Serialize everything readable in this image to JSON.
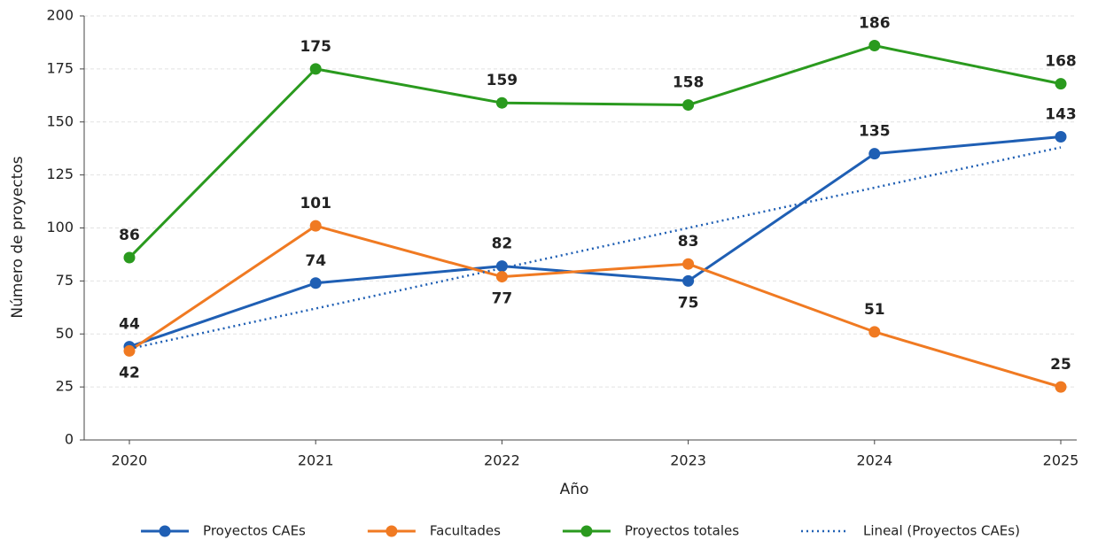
{
  "chart_data": {
    "type": "line",
    "x_label": "Año",
    "y_label": "Número de proyectos",
    "categories": [
      "2020",
      "2021",
      "2022",
      "2023",
      "2024",
      "2025"
    ],
    "series": [
      {
        "name": "Proyectos CAEs",
        "color": "#1f5fb4",
        "values": [
          44,
          74,
          82,
          75,
          135,
          143
        ],
        "markers": true,
        "data_labels": true
      },
      {
        "name": "Facultades",
        "color": "#f07a22",
        "values": [
          42,
          101,
          77,
          83,
          51,
          25
        ],
        "markers": true,
        "data_labels": true
      },
      {
        "name": "Proyectos totales",
        "color": "#2a9a1e",
        "values": [
          86,
          175,
          159,
          158,
          186,
          168
        ],
        "markers": true,
        "data_labels": true
      },
      {
        "name": "Lineal (Proyectos CAEs)",
        "color": "#1f5fb4",
        "values": [
          43,
          62,
          81,
          100,
          119,
          138
        ],
        "markers": false,
        "data_labels": false,
        "line_style": "dotted"
      }
    ],
    "ylim": [
      0,
      200
    ],
    "yticks": [
      0,
      25,
      50,
      75,
      100,
      125,
      150,
      175,
      200
    ],
    "grid": true,
    "legend": "bottom"
  }
}
